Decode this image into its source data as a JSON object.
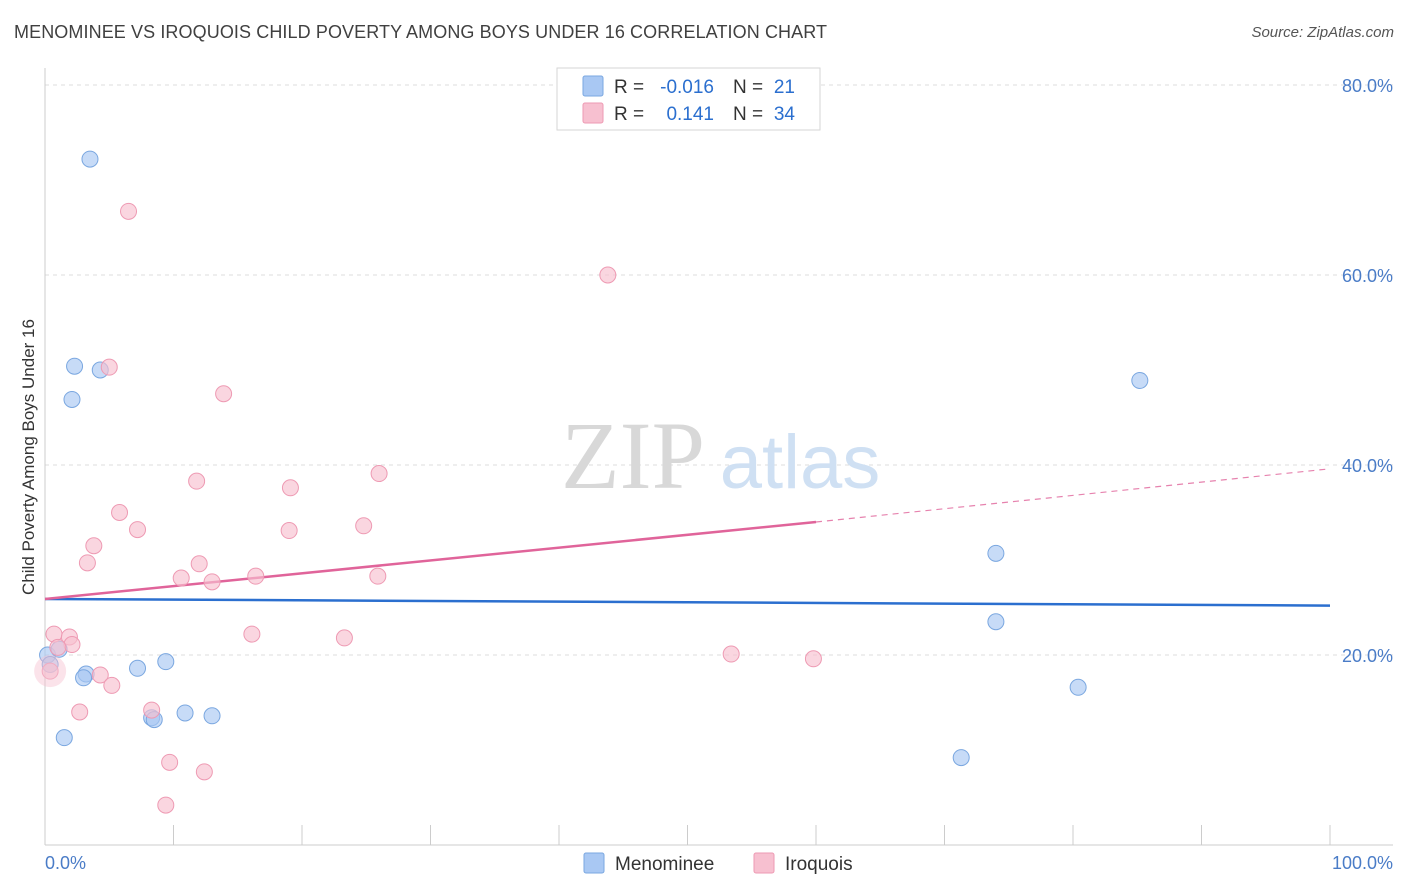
{
  "title": "MENOMINEE VS IROQUOIS CHILD POVERTY AMONG BOYS UNDER 16 CORRELATION CHART",
  "source": "Source: ZipAtlas.com",
  "watermark": {
    "zip": "ZIP",
    "atlas": "atlas"
  },
  "colors": {
    "menominee_fill": "#a9c8f3",
    "menominee_stroke": "#7aa7e0",
    "menominee_line": "#2b6fcf",
    "iroquois_fill": "#f7c0d0",
    "iroquois_stroke": "#ee9ab3",
    "iroquois_line": "#e0649a",
    "tick_text": "#4a7cc7",
    "grid": "#dddddd"
  },
  "legend_top": {
    "rows": [
      {
        "r_label": "R =",
        "r_value": "-0.016",
        "n_label": "N =",
        "n_value": "21"
      },
      {
        "r_label": "R =",
        "r_value": "0.141",
        "n_label": "N =",
        "n_value": "34"
      }
    ]
  },
  "legend_bottom": [
    "Menominee",
    "Iroquois"
  ],
  "chart_data": {
    "type": "scatter",
    "ylabel": "Child Poverty Among Boys Under 16",
    "xlim": [
      0,
      100
    ],
    "ylim": [
      0,
      80
    ],
    "x_tick_labels": [
      "0.0%",
      "100.0%"
    ],
    "y_ticks": [
      20,
      40,
      60,
      80
    ],
    "y_tick_labels": [
      "20.0%",
      "40.0%",
      "60.0%",
      "80.0%"
    ],
    "grid": true,
    "legend_position": "top-center",
    "series": [
      {
        "name": "Menominee",
        "r": -0.016,
        "n": 21,
        "trend": {
          "x": [
            0,
            100
          ],
          "y": [
            25.9,
            25.2
          ]
        },
        "points": [
          [
            3.5,
            72.2
          ],
          [
            2.3,
            50.4
          ],
          [
            4.3,
            50.0
          ],
          [
            2.1,
            46.9
          ],
          [
            85.2,
            48.9
          ],
          [
            74.0,
            30.7
          ],
          [
            74.0,
            23.5
          ],
          [
            80.4,
            16.6
          ],
          [
            0.2,
            20.0
          ],
          [
            0.4,
            19.0
          ],
          [
            1.1,
            20.6
          ],
          [
            3.2,
            18.0
          ],
          [
            3.0,
            17.6
          ],
          [
            7.2,
            18.6
          ],
          [
            9.4,
            19.3
          ],
          [
            8.3,
            13.4
          ],
          [
            8.5,
            13.2
          ],
          [
            10.9,
            13.9
          ],
          [
            13.0,
            13.6
          ],
          [
            1.5,
            11.3
          ],
          [
            71.3,
            9.2
          ]
        ]
      },
      {
        "name": "Iroquois",
        "r": 0.141,
        "n": 34,
        "trend": {
          "x": [
            0,
            60
          ],
          "y": [
            25.9,
            34.0
          ]
        },
        "trend_extension": {
          "x": [
            60,
            100
          ],
          "y": [
            34.0,
            39.6
          ]
        },
        "points": [
          [
            6.5,
            66.7
          ],
          [
            43.8,
            60.0
          ],
          [
            5.0,
            50.3
          ],
          [
            13.9,
            47.5
          ],
          [
            26.0,
            39.1
          ],
          [
            11.8,
            38.3
          ],
          [
            19.1,
            37.6
          ],
          [
            5.8,
            35.0
          ],
          [
            24.8,
            33.6
          ],
          [
            7.2,
            33.2
          ],
          [
            19.0,
            33.1
          ],
          [
            3.8,
            31.5
          ],
          [
            3.3,
            29.7
          ],
          [
            12.0,
            29.6
          ],
          [
            10.6,
            28.1
          ],
          [
            16.4,
            28.3
          ],
          [
            13.0,
            27.7
          ],
          [
            25.9,
            28.3
          ],
          [
            0.7,
            22.2
          ],
          [
            1.9,
            21.9
          ],
          [
            16.1,
            22.2
          ],
          [
            23.3,
            21.8
          ],
          [
            2.1,
            21.1
          ],
          [
            1.0,
            20.8
          ],
          [
            53.4,
            20.1
          ],
          [
            59.8,
            19.6
          ],
          [
            4.3,
            17.9
          ],
          [
            5.2,
            16.8
          ],
          [
            0.4,
            18.3
          ],
          [
            2.7,
            14.0
          ],
          [
            8.3,
            14.2
          ],
          [
            9.7,
            8.7
          ],
          [
            12.4,
            7.7
          ],
          [
            9.4,
            4.2
          ]
        ]
      }
    ]
  }
}
